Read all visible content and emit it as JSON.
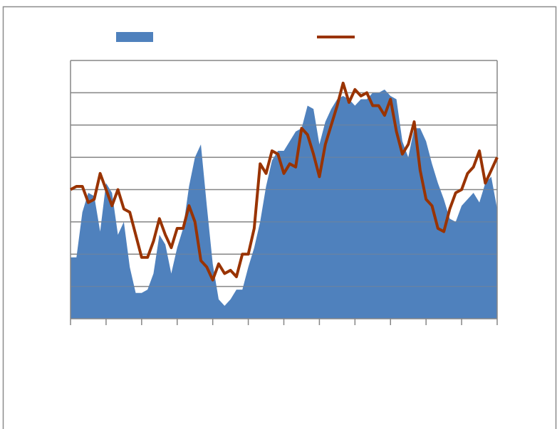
{
  "chart_data": {
    "type": "area-line",
    "x": [
      0,
      1,
      2,
      3,
      4,
      5,
      6,
      7,
      8,
      9,
      10,
      11,
      12,
      13,
      14,
      15,
      16,
      17,
      18,
      19,
      20,
      21,
      22,
      23,
      24,
      25,
      26,
      27,
      28,
      29,
      30,
      31,
      32,
      33,
      34,
      35,
      36,
      37,
      38,
      39,
      40,
      41,
      42,
      43,
      44,
      45,
      46,
      47,
      48,
      49,
      50,
      51,
      52,
      53,
      54,
      55,
      56,
      57,
      58,
      59,
      60,
      61,
      62,
      63,
      64,
      65,
      66,
      67,
      68,
      69,
      70,
      71,
      72
    ],
    "xlim": [
      0,
      72
    ],
    "xticks": [
      0,
      6,
      12,
      18,
      24,
      30,
      36,
      42,
      48,
      54,
      60,
      66,
      72
    ],
    "ylim": [
      0,
      8
    ],
    "yticks": [
      0,
      1,
      2,
      3,
      4,
      5,
      6,
      7,
      8
    ],
    "grid": true,
    "legend": "top",
    "series": [
      {
        "kind": "area",
        "color": "#4f81bd",
        "values": [
          1.9,
          1.9,
          3.3,
          3.9,
          3.8,
          2.7,
          4.2,
          3.9,
          2.6,
          3.0,
          1.6,
          0.8,
          0.8,
          0.9,
          1.4,
          2.6,
          2.3,
          1.4,
          2.2,
          2.8,
          4.1,
          5.0,
          5.4,
          3.5,
          1.7,
          0.6,
          0.4,
          0.6,
          0.9,
          0.9,
          1.6,
          2.2,
          3.0,
          4.1,
          4.9,
          5.2,
          5.2,
          5.5,
          5.8,
          5.9,
          6.6,
          6.5,
          5.4,
          6.1,
          6.5,
          6.8,
          6.9,
          6.8,
          6.6,
          6.8,
          6.8,
          7.0,
          7.0,
          7.1,
          6.9,
          6.8,
          5.5,
          5.0,
          5.9,
          5.9,
          5.5,
          4.8,
          4.2,
          3.7,
          3.1,
          3.0,
          3.5,
          3.7,
          3.9,
          3.6,
          4.2,
          4.4,
          3.4
        ]
      },
      {
        "kind": "line",
        "color": "#993300",
        "values": [
          4.0,
          4.1,
          4.1,
          3.6,
          3.7,
          4.5,
          4.0,
          3.5,
          4.0,
          3.4,
          3.3,
          2.6,
          1.9,
          1.9,
          2.4,
          3.1,
          2.6,
          2.2,
          2.8,
          2.8,
          3.5,
          3.0,
          1.8,
          1.6,
          1.2,
          1.7,
          1.4,
          1.5,
          1.3,
          2.0,
          2.0,
          2.8,
          4.8,
          4.5,
          5.2,
          5.1,
          4.5,
          4.8,
          4.7,
          5.9,
          5.7,
          5.1,
          4.4,
          5.4,
          6.0,
          6.6,
          7.3,
          6.7,
          7.1,
          6.9,
          7.0,
          6.6,
          6.6,
          6.3,
          6.8,
          5.8,
          5.1,
          5.4,
          6.1,
          4.6,
          3.7,
          3.5,
          2.8,
          2.7,
          3.4,
          3.9,
          4.0,
          4.5,
          4.7,
          5.2,
          4.2,
          4.6,
          5.0
        ]
      }
    ]
  }
}
